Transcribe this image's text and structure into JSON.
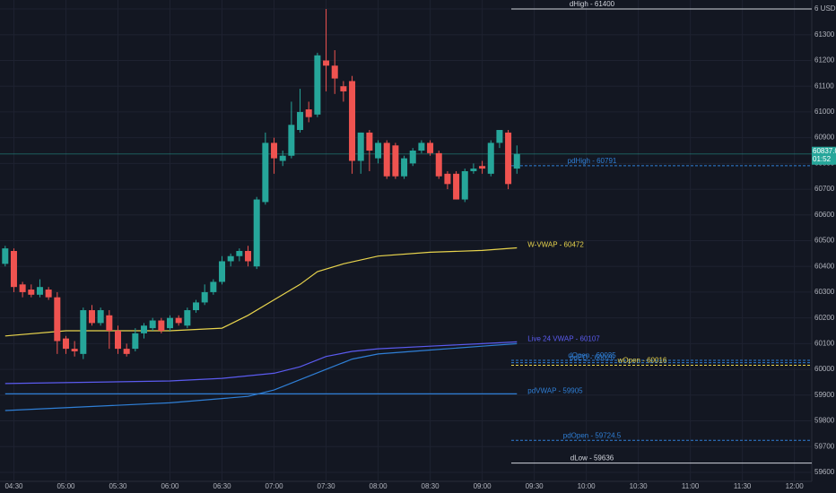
{
  "chart_data": {
    "type": "candlestick",
    "up_color": "#26a69a",
    "down_color": "#ef5350",
    "x": [
      "04:25",
      "04:30",
      "04:35",
      "04:40",
      "04:45",
      "04:50",
      "04:55",
      "05:00",
      "05:05",
      "05:10",
      "05:15",
      "05:20",
      "05:25",
      "05:30",
      "05:35",
      "05:40",
      "05:45",
      "05:50",
      "05:55",
      "06:00",
      "06:05",
      "06:10",
      "06:15",
      "06:20",
      "06:25",
      "06:30",
      "06:35",
      "06:40",
      "06:45",
      "06:50",
      "06:55",
      "07:00",
      "07:05",
      "07:10",
      "07:15",
      "07:20",
      "07:25",
      "07:30",
      "07:35",
      "07:40",
      "07:45",
      "07:50",
      "07:55",
      "08:00",
      "08:05",
      "08:10",
      "08:15",
      "08:20",
      "08:25",
      "08:30",
      "08:35",
      "08:40",
      "08:45",
      "08:50",
      "08:55",
      "09:00",
      "09:05",
      "09:10",
      "09:15",
      "09:20"
    ],
    "open": [
      60410,
      60460,
      60330,
      60310,
      60290,
      60310,
      60280,
      60120,
      60080,
      60060,
      60230,
      60180,
      60210,
      60150,
      60080,
      60080,
      60140,
      60160,
      60190,
      60160,
      60200,
      60170,
      60230,
      60260,
      60300,
      60340,
      60420,
      60440,
      60460,
      60400,
      60650,
      60880,
      60810,
      60830,
      60930,
      61010,
      60990,
      61200,
      61180,
      61100,
      61120,
      60810,
      60920,
      60820,
      60880,
      60870,
      60750,
      60800,
      60850,
      60880,
      60840,
      60760,
      60760,
      60660,
      60770,
      60790,
      60760,
      60880,
      60920,
      60780
    ],
    "high": [
      60480,
      60470,
      60340,
      60330,
      60350,
      60320,
      60300,
      60130,
      60110,
      60240,
      60250,
      60240,
      60230,
      60170,
      60100,
      60160,
      60180,
      60200,
      60200,
      60210,
      60210,
      60240,
      60270,
      60330,
      60350,
      60440,
      60450,
      60470,
      60480,
      60670,
      60920,
      60900,
      60850,
      61040,
      61090,
      61040,
      61230,
      61400,
      61240,
      61120,
      61140,
      60920,
      60930,
      60890,
      60890,
      60880,
      60830,
      60860,
      60890,
      60890,
      60850,
      60770,
      60770,
      60780,
      60800,
      60810,
      60890,
      60930,
      60930,
      60870
    ],
    "low": [
      60400,
      60300,
      60280,
      60280,
      60280,
      60270,
      60060,
      60060,
      60050,
      60040,
      60170,
      60170,
      60080,
      60060,
      60050,
      60070,
      60120,
      60150,
      60140,
      60150,
      60170,
      60160,
      60220,
      60250,
      60290,
      60330,
      60400,
      60420,
      60400,
      60390,
      60640,
      60760,
      60790,
      60820,
      60920,
      60960,
      60980,
      61080,
      61070,
      61040,
      60760,
      60760,
      60770,
      60800,
      60740,
      60740,
      60740,
      60790,
      60840,
      60830,
      60740,
      60700,
      60660,
      60650,
      60760,
      60760,
      60750,
      60860,
      60700,
      60760
    ],
    "close": [
      60470,
      60320,
      60300,
      60290,
      60320,
      60280,
      60110,
      60080,
      60070,
      60230,
      60180,
      60230,
      60150,
      60080,
      60060,
      60140,
      60170,
      60190,
      60150,
      60200,
      60180,
      60230,
      60260,
      60300,
      60340,
      60420,
      60440,
      60460,
      60420,
      60660,
      60880,
      60820,
      60830,
      60950,
      61000,
      60980,
      61220,
      61180,
      61130,
      61080,
      60810,
      60920,
      60850,
      60880,
      60750,
      60750,
      60820,
      60850,
      60880,
      60840,
      60750,
      60720,
      60660,
      60770,
      60780,
      60780,
      60880,
      60930,
      60720,
      60837
    ],
    "lines": [
      {
        "name": "W-VWAP -   60472",
        "color": "#e8d44d",
        "x": [
          "04:25",
          "05:00",
          "06:00",
          "06:30",
          "06:45",
          "07:00",
          "07:15",
          "07:25",
          "07:40",
          "08:00",
          "08:30",
          "09:00",
          "09:20"
        ],
        "values": [
          60130,
          60150,
          60150,
          60160,
          60210,
          60270,
          60330,
          60380,
          60410,
          60440,
          60455,
          60462,
          60472
        ]
      },
      {
        "name": "Live 24 VWAP -   60107",
        "color": "#5b5bf0",
        "x": [
          "04:25",
          "06:00",
          "06:30",
          "07:00",
          "07:15",
          "07:30",
          "07:45",
          "08:00",
          "08:30",
          "09:00",
          "09:20"
        ],
        "values": [
          59945,
          59955,
          59965,
          59985,
          60010,
          60050,
          60070,
          60080,
          60090,
          60100,
          60107
        ]
      },
      {
        "color": "#2f7fd6",
        "x": [
          "04:25",
          "06:00",
          "06:45",
          "07:00",
          "07:15",
          "07:30",
          "07:45",
          "08:00",
          "08:30",
          "09:00",
          "09:20"
        ],
        "values": [
          59840,
          59870,
          59895,
          59920,
          59960,
          60000,
          60040,
          60060,
          60075,
          60090,
          60100
        ]
      },
      {
        "name": "pdVWAP -   59905",
        "color": "#2f7fd6",
        "x": [
          "04:25",
          "09:20"
        ],
        "values": [
          59905,
          59905
        ]
      }
    ],
    "levels": [
      {
        "label": "dHigh - 61400",
        "value": 61400,
        "color": "#d1d4dc",
        "style": "solid"
      },
      {
        "label": "pdHigh - 60791",
        "value": 60791,
        "color": "#2f7fd6",
        "style": "dashed"
      },
      {
        "label": "pdEQ - 60026",
        "value": 60026,
        "color": "#2f7fd6",
        "style": "dashed"
      },
      {
        "label": "dOpen - 60035",
        "value": 60035,
        "color": "#2f7fd6",
        "style": "dashed"
      },
      {
        "label": "wOpen - 60016",
        "value": 60016,
        "color": "#e8d44d",
        "style": "dashed"
      },
      {
        "label": "pdOpen - 59724.5",
        "value": 59724.5,
        "color": "#2f7fd6",
        "style": "dashed"
      },
      {
        "label": "dLow - 59636",
        "value": 59636,
        "color": "#d1d4dc",
        "style": "solid"
      }
    ],
    "last_price": {
      "value": 60837,
      "label": "60837.0"
    },
    "countdown": "01:52",
    "xlim": [
      "04:22",
      "12:10"
    ],
    "xticks": [
      "04:30",
      "05:00",
      "05:30",
      "06:00",
      "06:30",
      "07:00",
      "07:30",
      "08:00",
      "08:30",
      "09:00",
      "09:30",
      "10:00",
      "10:30",
      "11:00",
      "11:30",
      "12:00"
    ],
    "ylim": [
      59565,
      61435
    ],
    "yticks": [
      59600,
      59700,
      59800,
      59900,
      60000,
      60100,
      60200,
      60300,
      60400,
      60500,
      60600,
      60700,
      60800,
      60900,
      61000,
      61100,
      61200,
      61300,
      {
        "value": 61400,
        "label": "6 USD"
      }
    ],
    "grid": true
  }
}
